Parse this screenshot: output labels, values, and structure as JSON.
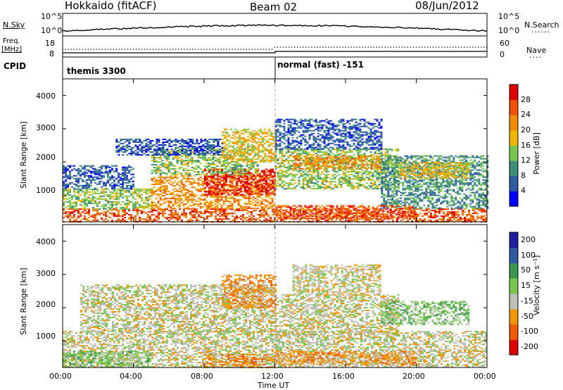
{
  "header": {
    "radar": "Hokkaido (fitACF)",
    "beam": "Beam 02",
    "date": "08/Jun/2012"
  },
  "side_labels": {
    "nsky": "N.Sky",
    "freq_top": "Freq.",
    "freq_unit": "[MHz]",
    "cpid": "CPID",
    "nsearch": "N.Search",
    "nave": "Nave"
  },
  "panel_ticks": {
    "nsky_left": [
      "10^5",
      "10^0"
    ],
    "nsky_right": [
      "10^5",
      "10^0"
    ],
    "freq_left": [
      "18",
      "8"
    ],
    "nave_right": [
      "60",
      "0"
    ]
  },
  "cpid_labels": [
    "themis 3300",
    "normal (fast) -151"
  ],
  "colors": {
    "power": [
      "#0000ff",
      "#2d5aa0",
      "#3c8c78",
      "#78c850",
      "#f0b400",
      "#f08c00",
      "#f05000",
      "#e00000"
    ],
    "velocity": [
      "#e00000",
      "#f05a00",
      "#f09600",
      "#c0c0b8",
      "#78c850",
      "#3c9650",
      "#2d5aa0",
      "#1e1ea0"
    ],
    "trace": "#000000"
  },
  "chart_data": [
    {
      "type": "heatmap",
      "name": "power",
      "xlabel": "",
      "ylabel": "Slant Range [km]",
      "yticks": [
        "1000",
        "2000",
        "3000",
        "4000"
      ],
      "ylim": [
        200,
        4500
      ],
      "xlim": [
        "00:00",
        "24:00"
      ],
      "colorbar_label": "Power [dB]",
      "colorbar_ticks": [
        "4",
        "8",
        "12",
        "16",
        "20",
        "24",
        "28"
      ],
      "regions": [
        {
          "t0": 0.0,
          "t1": 24.0,
          "r0": 200,
          "r1": 600,
          "level": 6
        },
        {
          "t0": 0.0,
          "t1": 5.0,
          "r0": 600,
          "r1": 1200,
          "level": 3
        },
        {
          "t0": 0.0,
          "t1": 4.0,
          "r0": 1200,
          "r1": 1900,
          "level": 1
        },
        {
          "t0": 5.0,
          "t1": 12.0,
          "r0": 600,
          "r1": 1600,
          "level": 5
        },
        {
          "t0": 8.0,
          "t1": 12.0,
          "r0": 1000,
          "r1": 1800,
          "level": 7
        },
        {
          "t0": 5.0,
          "t1": 11.0,
          "r0": 1600,
          "r1": 2400,
          "level": 3
        },
        {
          "t0": 9.0,
          "t1": 12.0,
          "r0": 2000,
          "r1": 3000,
          "level": 4
        },
        {
          "t0": 3.0,
          "t1": 9.0,
          "r0": 2200,
          "r1": 2700,
          "level": 1
        },
        {
          "t0": 12.0,
          "t1": 19.0,
          "r0": 1200,
          "r1": 2400,
          "level": 3
        },
        {
          "t0": 13.0,
          "t1": 18.0,
          "r0": 1800,
          "r1": 2200,
          "level": 5
        },
        {
          "t0": 12.0,
          "t1": 18.0,
          "r0": 2400,
          "r1": 3300,
          "level": 1
        },
        {
          "t0": 18.0,
          "t1": 24.0,
          "r0": 600,
          "r1": 2200,
          "level": 2
        },
        {
          "t0": 19.0,
          "t1": 23.0,
          "r0": 1500,
          "r1": 2000,
          "level": 4
        },
        {
          "t0": 12.0,
          "t1": 20.0,
          "r0": 300,
          "r1": 700,
          "level": 6
        }
      ]
    },
    {
      "type": "heatmap",
      "name": "velocity",
      "xlabel": "Time UT",
      "ylabel": "Slant Range [km]",
      "yticks": [
        "1000",
        "2000",
        "3000",
        "4000"
      ],
      "ylim": [
        200,
        4500
      ],
      "xlim": [
        "00:00",
        "24:00"
      ],
      "xticks": [
        "00:00",
        "04:00",
        "08:00",
        "12:00",
        "16:00",
        "20:00",
        "00:00"
      ],
      "colorbar_label": "Velocity [m s⁻¹]",
      "colorbar_ticks": [
        "-200",
        "-100",
        "-50",
        "-15",
        "15",
        "50",
        "100",
        "200"
      ],
      "regions": [
        {
          "t0": 0.0,
          "t1": 24.0,
          "r0": 200,
          "r1": 1300,
          "level": 3
        },
        {
          "t0": 1.0,
          "t1": 12.0,
          "r0": 1300,
          "r1": 2700,
          "level": 3
        },
        {
          "t0": 0.0,
          "t1": 5.0,
          "r0": 200,
          "r1": 700,
          "level": 4
        },
        {
          "t0": 8.0,
          "t1": 12.0,
          "r0": 200,
          "r1": 600,
          "level": 2
        },
        {
          "t0": 12.0,
          "t1": 19.0,
          "r0": 1200,
          "r1": 2400,
          "level": 3
        },
        {
          "t0": 12.0,
          "t1": 20.0,
          "r0": 300,
          "r1": 700,
          "level": 2
        },
        {
          "t0": 13.0,
          "t1": 18.0,
          "r0": 2400,
          "r1": 3300,
          "level": 3
        },
        {
          "t0": 18.0,
          "t1": 23.0,
          "r0": 1500,
          "r1": 2200,
          "level": 4
        },
        {
          "t0": 9.0,
          "t1": 12.0,
          "r0": 2000,
          "r1": 3000,
          "level": 2
        }
      ]
    }
  ]
}
